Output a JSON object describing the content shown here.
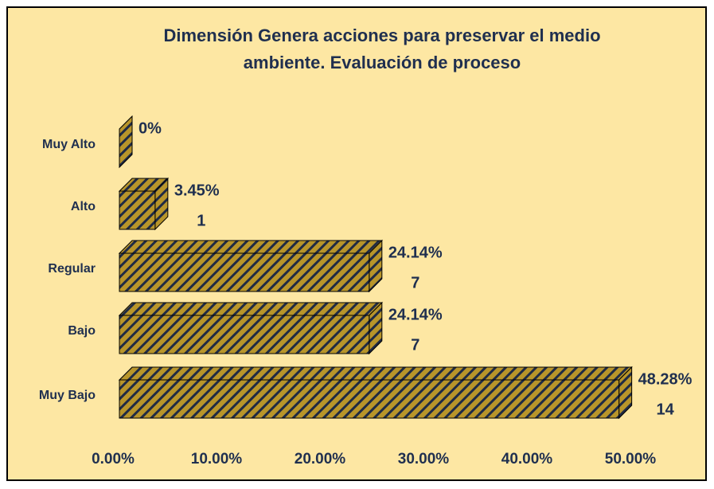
{
  "chart_data": {
    "type": "hbar3d",
    "title": [
      "Dimensión Genera acciones para preservar el medio",
      "ambiente. Evaluación de proceso"
    ],
    "categories": [
      "Muy Alto",
      "Alto",
      "Regular",
      "Bajo",
      "Muy Bajo"
    ],
    "values": [
      0,
      3.45,
      24.14,
      24.14,
      48.28
    ],
    "value_labels": [
      "0%",
      "3.45%",
      "24.14%",
      "24.14%",
      "48.28%"
    ],
    "counts": [
      null,
      1,
      7,
      7,
      14
    ],
    "color": "#b8952a",
    "hatch_color": "#1f2a44",
    "xlim": [
      0,
      50
    ],
    "xticks": [
      {
        "value": 0,
        "label": "0.00%"
      },
      {
        "value": 10,
        "label": "10.00%"
      },
      {
        "value": 20,
        "label": "20.00%"
      },
      {
        "value": 30,
        "label": "30.00%"
      },
      {
        "value": 40,
        "label": "40.00%"
      },
      {
        "value": 50,
        "label": "50.00%"
      }
    ]
  }
}
